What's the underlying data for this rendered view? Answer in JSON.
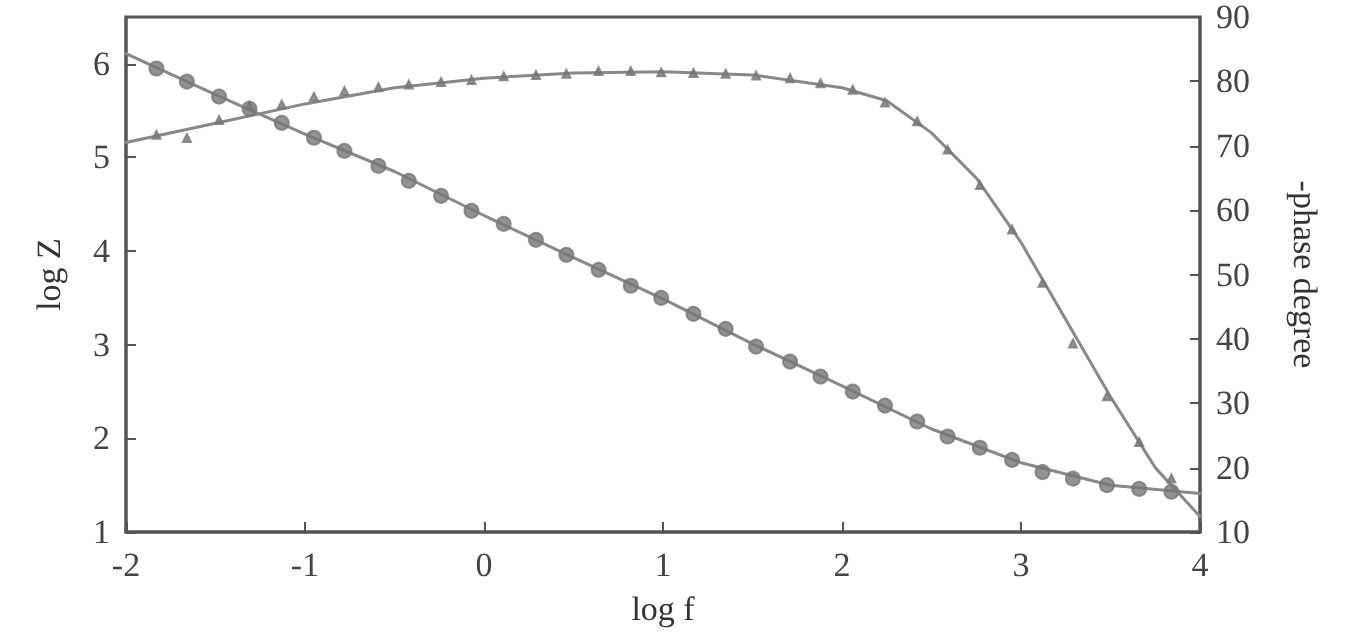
{
  "chart_data": {
    "type": "scatter",
    "xlabel": "log f",
    "ylabel": "log Z",
    "y2label": "-phase degree",
    "xlim": [
      -2,
      4
    ],
    "xticks": [
      -2,
      -1,
      0,
      1,
      2,
      3,
      4
    ],
    "ylim": [
      1,
      6.5
    ],
    "yticks": [
      1,
      2,
      3,
      4,
      5,
      6
    ],
    "y2lim": [
      10,
      90
    ],
    "y2ticks": [
      10,
      20,
      30,
      40,
      50,
      60,
      70,
      80,
      90
    ],
    "grid": false,
    "series": [
      {
        "marker": "circle",
        "color": "#777777",
        "x": [
          -1.83,
          -1.66,
          -1.48,
          -1.31,
          -1.13,
          -0.95,
          -0.78,
          -0.59,
          -0.42,
          -0.24,
          -0.07,
          0.11,
          0.29,
          0.46,
          0.64,
          0.82,
          0.99,
          1.17,
          1.35,
          1.52,
          1.71,
          1.88,
          2.06,
          2.24,
          2.42,
          2.59,
          2.77,
          2.95,
          3.12,
          3.29,
          3.48,
          3.66,
          3.84
        ],
        "values": [
          5.95,
          5.81,
          5.65,
          5.52,
          5.37,
          5.21,
          5.07,
          4.91,
          4.75,
          4.59,
          4.43,
          4.29,
          4.12,
          3.96,
          3.8,
          3.63,
          3.5,
          3.33,
          3.17,
          2.98,
          2.82,
          2.66,
          2.5,
          2.35,
          2.18,
          2.02,
          1.9,
          1.77,
          1.64,
          1.57,
          1.5,
          1.46,
          1.43
        ]
      },
      {
        "marker": "triangle",
        "axis": "y2",
        "color": "#777777",
        "x": [
          -1.83,
          -1.66,
          -1.48,
          -1.31,
          -1.13,
          -0.95,
          -0.78,
          -0.59,
          -0.42,
          -0.24,
          -0.07,
          0.11,
          0.29,
          0.46,
          0.64,
          0.82,
          0.99,
          1.17,
          1.35,
          1.52,
          1.71,
          1.88,
          2.06,
          2.24,
          2.42,
          2.59,
          2.77,
          2.95,
          3.12,
          3.29,
          3.48,
          3.66,
          3.84
        ],
        "values": [
          71.7,
          71.2,
          74,
          76.2,
          76.4,
          77.6,
          78.5,
          79.1,
          79.5,
          79.9,
          80.2,
          80.8,
          81,
          81.2,
          81.6,
          81.6,
          81.4,
          81.3,
          81.2,
          80.9,
          80.5,
          79.7,
          78.7,
          76.7,
          73.8,
          69.4,
          63.9,
          57,
          48.7,
          39.3,
          31.1,
          24,
          18.3
        ]
      },
      {
        "type": "line",
        "marker": "none",
        "color": "#888888",
        "x": [
          -2,
          -1.5,
          -1,
          -0.5,
          0,
          0.5,
          1,
          1.5,
          2,
          2.5,
          3,
          3.5,
          4
        ],
        "values": [
          6.11,
          5.67,
          5.25,
          4.85,
          4.38,
          3.93,
          3.49,
          3.01,
          2.56,
          2.1,
          1.74,
          1.5,
          1.41
        ]
      },
      {
        "type": "line",
        "marker": "none",
        "axis": "y2",
        "color": "#888888",
        "x": [
          -2,
          -1.5,
          -1,
          -0.5,
          0,
          0.5,
          1,
          1.5,
          2,
          2.25,
          2.5,
          2.75,
          3,
          3.25,
          3.5,
          3.75,
          4
        ],
        "values": [
          70.5,
          73.5,
          76.5,
          79,
          80.5,
          81.3,
          81.5,
          81,
          79,
          77,
          72,
          65,
          55,
          43,
          31,
          20,
          12.4
        ]
      }
    ]
  }
}
